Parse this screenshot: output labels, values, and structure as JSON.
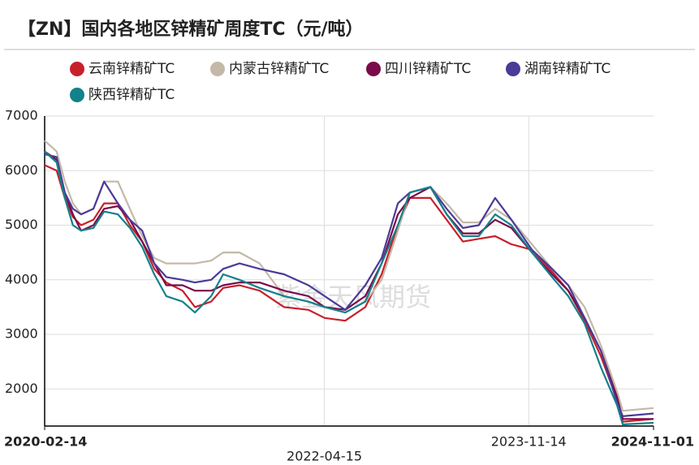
{
  "chart_data": {
    "type": "line",
    "title": "【ZN】国内各地区锌精矿周度TC（元/吨）",
    "watermark": "紫金天风期货",
    "x": [
      "2020-02-14",
      "2020-03-19",
      "2020-04-11",
      "2020-05-04",
      "2020-05-27",
      "2020-07-01",
      "2020-07-31",
      "2020-09-08",
      "2020-10-12",
      "2020-11-16",
      "2020-12-20",
      "2021-01-23",
      "2021-03-10",
      "2021-04-14",
      "2021-05-30",
      "2021-07-03",
      "2021-08-18",
      "2021-10-14",
      "2021-12-22",
      "2022-03-01",
      "2022-04-16",
      "2022-06-13",
      "2022-08-09",
      "2022-09-24",
      "2022-11-09",
      "2022-12-13",
      "2023-02-09",
      "2023-03-27",
      "2023-05-12",
      "2023-06-26",
      "2023-08-11",
      "2023-09-26",
      "2023-11-23",
      "2024-01-19",
      "2024-03-05",
      "2024-04-20",
      "2024-06-05",
      "2024-07-21",
      "2024-08-06",
      "2024-11-01"
    ],
    "series": [
      {
        "name": "云南锌精矿TC",
        "color": "#c8202a",
        "values": [
          6100,
          6000,
          5500,
          5150,
          5000,
          5100,
          5400,
          5400,
          5000,
          4700,
          4200,
          3950,
          3800,
          3500,
          3600,
          3850,
          3900,
          3800,
          3500,
          3450,
          3300,
          3250,
          3500,
          4100,
          5000,
          5500,
          5500,
          5100,
          4700,
          4750,
          4800,
          4650,
          4550,
          4150,
          3800,
          3250,
          2600,
          1800,
          1400,
          1450
        ]
      },
      {
        "name": "内蒙古锌精矿TC",
        "color": "#c4b8a8",
        "values": [
          6550,
          6350,
          5800,
          5400,
          5200,
          5300,
          5800,
          5800,
          5300,
          4800,
          4400,
          4300,
          4300,
          4300,
          4350,
          4500,
          4500,
          4300,
          3700,
          3600,
          3500,
          3400,
          3600,
          4000,
          4900,
          5600,
          5700,
          5400,
          5050,
          5050,
          5300,
          5100,
          4650,
          4200,
          3900,
          3500,
          2800,
          1950,
          1600,
          1650
        ]
      },
      {
        "name": "四川锌精矿TC",
        "color": "#7a0a4a",
        "values": [
          6350,
          6200,
          5600,
          5200,
          4900,
          5000,
          5300,
          5350,
          5100,
          4700,
          4300,
          3900,
          3900,
          3800,
          3800,
          3900,
          3950,
          3950,
          3800,
          3700,
          3500,
          3450,
          3700,
          4300,
          5200,
          5500,
          5700,
          5200,
          4850,
          4850,
          5100,
          4950,
          4500,
          4100,
          3800,
          3300,
          2700,
          1850,
          1450,
          1450
        ]
      },
      {
        "name": "湖南锌精矿TC",
        "color": "#4b3a96",
        "values": [
          6300,
          6250,
          5600,
          5300,
          5200,
          5300,
          5800,
          5400,
          5100,
          4900,
          4300,
          4050,
          4000,
          3950,
          4000,
          4200,
          4300,
          4200,
          4100,
          3900,
          3700,
          3450,
          3900,
          4400,
          5400,
          5600,
          5700,
          5300,
          4950,
          5000,
          5500,
          5100,
          4550,
          4200,
          3900,
          3300,
          2700,
          1750,
          1500,
          1550
        ]
      },
      {
        "name": "陕西锌精矿TC",
        "color": "#13818a",
        "values": [
          6350,
          6150,
          5500,
          5000,
          4900,
          4950,
          5250,
          5200,
          4950,
          4600,
          4100,
          3700,
          3600,
          3400,
          3700,
          4100,
          4000,
          3850,
          3700,
          3600,
          3500,
          3400,
          3600,
          4300,
          5000,
          5600,
          5700,
          5200,
          4800,
          4800,
          5200,
          5000,
          4500,
          4050,
          3700,
          3200,
          2400,
          1700,
          1350,
          1380
        ]
      }
    ],
    "xticks": [
      "2020-02-14",
      "2022-04-15",
      "2023-11-14",
      "2024-11-01"
    ],
    "ylim": [
      1320,
      7000
    ],
    "yticks": [
      2000,
      3000,
      4000,
      5000,
      6000,
      7000
    ],
    "grid": true
  }
}
